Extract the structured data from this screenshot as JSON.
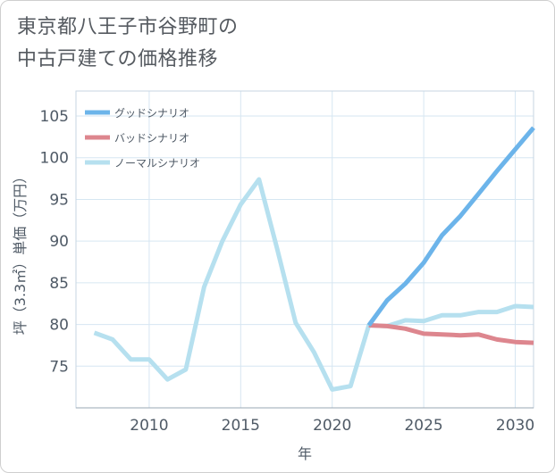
{
  "title_line1": "東京都八王子市谷野町の",
  "title_line2": "中古戸建ての価格推移",
  "chart_data": {
    "type": "line",
    "xlabel": "年",
    "ylabel": "坪（3.3㎡）単価（万円）",
    "xlim": [
      2006,
      2031
    ],
    "ylim": [
      70,
      108
    ],
    "xticks": [
      2010,
      2015,
      2020,
      2025,
      2030
    ],
    "yticks": [
      75,
      80,
      85,
      90,
      95,
      100,
      105
    ],
    "grid": true,
    "legend_position": "top-left",
    "series": [
      {
        "name": "グッドシナリオ",
        "color": "#6cb4ea",
        "x": [
          2022,
          2023,
          2024,
          2025,
          2026,
          2027,
          2028,
          2029,
          2030,
          2031
        ],
        "values": [
          79.9,
          82.9,
          84.9,
          87.4,
          90.7,
          93.0,
          95.7,
          98.4,
          101.0,
          103.6
        ]
      },
      {
        "name": "バッドシナリオ",
        "color": "#dd868e",
        "x": [
          2022,
          2023,
          2024,
          2025,
          2026,
          2027,
          2028,
          2029,
          2030,
          2031
        ],
        "values": [
          79.9,
          79.8,
          79.5,
          78.9,
          78.8,
          78.7,
          78.8,
          78.2,
          77.9,
          77.8
        ]
      },
      {
        "name": "ノーマルシナリオ",
        "color": "#b6e0ef",
        "x": [
          2007,
          2008,
          2009,
          2010,
          2011,
          2012,
          2013,
          2014,
          2015,
          2016,
          2017,
          2018,
          2019,
          2020,
          2021,
          2022,
          2023,
          2024,
          2025,
          2026,
          2027,
          2028,
          2029,
          2030,
          2031
        ],
        "values": [
          79.0,
          78.2,
          75.8,
          75.8,
          73.4,
          74.6,
          84.5,
          90.0,
          94.4,
          97.4,
          89.0,
          80.2,
          76.7,
          72.2,
          72.6,
          79.9,
          79.8,
          80.5,
          80.4,
          81.1,
          81.1,
          81.5,
          81.5,
          82.2,
          82.1
        ]
      }
    ]
  }
}
